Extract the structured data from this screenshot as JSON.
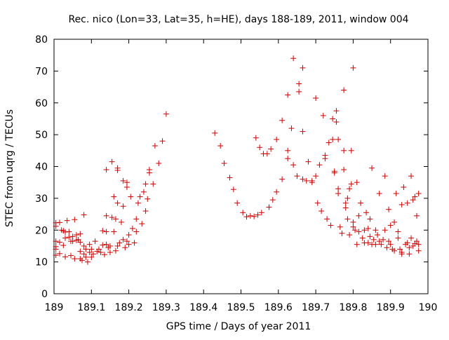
{
  "chart_data": {
    "type": "scatter",
    "title": "Rec. nico (Lon=33, Lat=35, h=HE), days 188-189, 2011, window 004",
    "xlabel": "GPS time / Days of year 2011",
    "ylabel": "STEC from uqrg / TECUs",
    "xlim": [
      189,
      190
    ],
    "ylim": [
      0,
      80
    ],
    "xticks": [
      189,
      189.1,
      189.2,
      189.3,
      189.4,
      189.5,
      189.6,
      189.7,
      189.8,
      189.9,
      190
    ],
    "yticks": [
      0,
      10,
      20,
      30,
      40,
      50,
      60,
      70,
      80
    ],
    "xtick_labels": [
      "189",
      "189.1",
      "189.2",
      "189.3",
      "189.4",
      "189.5",
      "189.6",
      "189.7",
      "189.8",
      "189.9",
      "190"
    ],
    "ytick_labels": [
      "0",
      "10",
      "20",
      "30",
      "40",
      "50",
      "60",
      "70",
      "80"
    ],
    "grid": false,
    "marker": "plus",
    "color": "#cc0000",
    "series": [
      {
        "points": [
          [
            189.005,
            22.3
          ],
          [
            189.005,
            21.2
          ],
          [
            189.005,
            16.5
          ],
          [
            189.005,
            14.8
          ],
          [
            189.005,
            14.0
          ],
          [
            189.005,
            12.1
          ],
          [
            189.015,
            22.4
          ],
          [
            189.015,
            16.2
          ],
          [
            189.015,
            12.6
          ],
          [
            189.02,
            20.0
          ],
          [
            189.025,
            19.8
          ],
          [
            189.025,
            15.2
          ],
          [
            189.03,
            19.4
          ],
          [
            189.03,
            17.5
          ],
          [
            189.03,
            11.6
          ],
          [
            189.035,
            23.0
          ],
          [
            189.04,
            19.5
          ],
          [
            189.04,
            17.8
          ],
          [
            189.045,
            16.5
          ],
          [
            189.045,
            12.0
          ],
          [
            189.05,
            18.0
          ],
          [
            189.05,
            16.5
          ],
          [
            189.055,
            23.3
          ],
          [
            189.055,
            11.0
          ],
          [
            189.06,
            18.5
          ],
          [
            189.06,
            16.8
          ],
          [
            189.065,
            17.0
          ],
          [
            189.07,
            18.8
          ],
          [
            189.07,
            16.2
          ],
          [
            189.07,
            13.3
          ],
          [
            189.07,
            11.0
          ],
          [
            189.075,
            10.5
          ],
          [
            189.08,
            15.0
          ],
          [
            189.08,
            12.5
          ],
          [
            189.08,
            24.8
          ],
          [
            189.085,
            14.0
          ],
          [
            189.085,
            11.5
          ],
          [
            189.09,
            10.0
          ],
          [
            189.095,
            15.5
          ],
          [
            189.095,
            13.0
          ],
          [
            189.1,
            14.0
          ],
          [
            189.1,
            11.5
          ],
          [
            189.105,
            12.5
          ],
          [
            189.11,
            16.5
          ],
          [
            189.115,
            13.3
          ],
          [
            189.12,
            14.0
          ],
          [
            189.125,
            13.0
          ],
          [
            189.13,
            15.3
          ],
          [
            189.13,
            19.8
          ],
          [
            189.135,
            12.3
          ],
          [
            189.14,
            19.5
          ],
          [
            189.14,
            15.5
          ],
          [
            189.14,
            24.5
          ],
          [
            189.14,
            39.0
          ],
          [
            189.145,
            14.5
          ],
          [
            189.15,
            15.0
          ],
          [
            189.15,
            13.0
          ],
          [
            189.155,
            24.0
          ],
          [
            189.155,
            41.5
          ],
          [
            189.16,
            19.5
          ],
          [
            189.16,
            30.5
          ],
          [
            189.165,
            13.5
          ],
          [
            189.165,
            23.5
          ],
          [
            189.17,
            15.0
          ],
          [
            189.17,
            28.5
          ],
          [
            189.17,
            39.5
          ],
          [
            189.17,
            38.8
          ],
          [
            189.175,
            16.0
          ],
          [
            189.18,
            22.5
          ],
          [
            189.185,
            27.5
          ],
          [
            189.185,
            17.0
          ],
          [
            189.185,
            35.5
          ],
          [
            189.19,
            14.5
          ],
          [
            189.195,
            16.5
          ],
          [
            189.195,
            33.5
          ],
          [
            189.195,
            35.0
          ],
          [
            189.2,
            18.5
          ],
          [
            189.2,
            15.5
          ],
          [
            189.205,
            30.5
          ],
          [
            189.21,
            20.5
          ],
          [
            189.215,
            16.0
          ],
          [
            189.22,
            23.5
          ],
          [
            189.22,
            19.5
          ],
          [
            189.225,
            28.5
          ],
          [
            189.23,
            30.5
          ],
          [
            189.235,
            22.0
          ],
          [
            189.24,
            32.0
          ],
          [
            189.245,
            26.0
          ],
          [
            189.245,
            34.5
          ],
          [
            189.25,
            29.8
          ],
          [
            189.255,
            38.0
          ],
          [
            189.255,
            39.0
          ],
          [
            189.265,
            34.5
          ],
          [
            189.27,
            46.5
          ],
          [
            189.28,
            41.0
          ],
          [
            189.29,
            48.0
          ],
          [
            189.3,
            56.5
          ]
        ]
      },
      {
        "points": [
          [
            189.43,
            50.5
          ],
          [
            189.445,
            46.5
          ],
          [
            189.455,
            41.0
          ],
          [
            189.47,
            36.5
          ],
          [
            189.48,
            32.8
          ],
          [
            189.49,
            28.5
          ],
          [
            189.505,
            25.5
          ],
          [
            189.515,
            24.2
          ],
          [
            189.525,
            24.5
          ],
          [
            189.535,
            24.3
          ],
          [
            189.54,
            49.0
          ],
          [
            189.545,
            24.8
          ],
          [
            189.55,
            46.0
          ],
          [
            189.555,
            25.5
          ],
          [
            189.56,
            44.0
          ],
          [
            189.57,
            44.0
          ],
          [
            189.575,
            27.2
          ],
          [
            189.58,
            45.5
          ],
          [
            189.585,
            29.5
          ],
          [
            189.595,
            32.0
          ],
          [
            189.595,
            48.5
          ],
          [
            189.61,
            36.0
          ],
          [
            189.61,
            54.5
          ],
          [
            189.625,
            62.5
          ],
          [
            189.625,
            45.0
          ],
          [
            189.625,
            42.5
          ],
          [
            189.635,
            52.0
          ],
          [
            189.64,
            40.5
          ],
          [
            189.64,
            74.0
          ],
          [
            189.65,
            37.0
          ],
          [
            189.655,
            63.5
          ],
          [
            189.655,
            66.0
          ],
          [
            189.665,
            71.0
          ],
          [
            189.665,
            36.0
          ],
          [
            189.665,
            51.0
          ],
          [
            189.675,
            35.5
          ],
          [
            189.68,
            41.5
          ],
          [
            189.69,
            35.0
          ],
          [
            189.69,
            35.5
          ],
          [
            189.7,
            61.5
          ],
          [
            189.7,
            37.0
          ],
          [
            189.705,
            28.5
          ],
          [
            189.71,
            40.5
          ],
          [
            189.715,
            26.0
          ],
          [
            189.72,
            56.0
          ],
          [
            189.725,
            43.5
          ],
          [
            189.725,
            42.5
          ],
          [
            189.73,
            23.5
          ],
          [
            189.735,
            47.5
          ],
          [
            189.74,
            21.5
          ],
          [
            189.745,
            48.5
          ],
          [
            189.745,
            55.0
          ],
          [
            189.75,
            38.5
          ],
          [
            189.75,
            38.0
          ],
          [
            189.755,
            57.5
          ],
          [
            189.755,
            54.0
          ],
          [
            189.76,
            33.0
          ],
          [
            189.76,
            31.5
          ],
          [
            189.76,
            48.5
          ],
          [
            189.765,
            21.0
          ],
          [
            189.77,
            19.0
          ],
          [
            189.775,
            39.0
          ],
          [
            189.775,
            45.0
          ],
          [
            189.775,
            64.0
          ],
          [
            189.78,
            28.5
          ],
          [
            189.78,
            27.0
          ],
          [
            189.785,
            23.5
          ],
          [
            189.785,
            30.0
          ],
          [
            189.79,
            18.5
          ],
          [
            189.79,
            33.0
          ],
          [
            189.795,
            45.0
          ],
          [
            189.795,
            34.5
          ],
          [
            189.8,
            71.0
          ],
          [
            189.8,
            21.0
          ],
          [
            189.8,
            22.5
          ],
          [
            189.805,
            20.0
          ],
          [
            189.81,
            15.5
          ],
          [
            189.81,
            35.0
          ],
          [
            189.815,
            19.5
          ],
          [
            189.815,
            24.5
          ],
          [
            189.82,
            28.5
          ],
          [
            189.825,
            17.5
          ],
          [
            189.83,
            16.0
          ],
          [
            189.83,
            20.0
          ],
          [
            189.835,
            25.5
          ],
          [
            189.84,
            16.0
          ],
          [
            189.84,
            20.5
          ],
          [
            189.845,
            23.5
          ],
          [
            189.845,
            18.0
          ],
          [
            189.85,
            15.5
          ],
          [
            189.85,
            39.5
          ],
          [
            189.855,
            17.0
          ],
          [
            189.86,
            20.0
          ],
          [
            189.86,
            15.5
          ],
          [
            189.865,
            18.5
          ],
          [
            189.87,
            16.5
          ],
          [
            189.87,
            31.5
          ],
          [
            189.875,
            15.5
          ],
          [
            189.88,
            17.0
          ],
          [
            189.885,
            20.0
          ],
          [
            189.885,
            37.0
          ],
          [
            189.89,
            14.5
          ],
          [
            189.895,
            26.5
          ],
          [
            189.895,
            16.5
          ],
          [
            189.9,
            21.5
          ],
          [
            189.9,
            15.5
          ],
          [
            189.905,
            14.0
          ],
          [
            189.91,
            22.5
          ],
          [
            189.91,
            13.5
          ],
          [
            189.915,
            31.5
          ],
          [
            189.92,
            17.5
          ],
          [
            189.92,
            19.5
          ],
          [
            189.925,
            14.0
          ],
          [
            189.93,
            28.0
          ],
          [
            189.93,
            13.0
          ],
          [
            189.93,
            12.5
          ],
          [
            189.935,
            33.5
          ],
          [
            189.94,
            15.5
          ],
          [
            189.945,
            16.0
          ],
          [
            189.945,
            28.5
          ],
          [
            189.95,
            14.5
          ],
          [
            189.95,
            12.5
          ],
          [
            189.955,
            17.5
          ],
          [
            189.955,
            37.0
          ],
          [
            189.96,
            15.0
          ],
          [
            189.96,
            29.5
          ],
          [
            189.965,
            30.5
          ],
          [
            189.965,
            15.8
          ],
          [
            189.97,
            24.5
          ],
          [
            189.97,
            16.5
          ],
          [
            189.975,
            31.5
          ],
          [
            189.975,
            13.5
          ],
          [
            189.975,
            15.5
          ]
        ]
      }
    ]
  }
}
